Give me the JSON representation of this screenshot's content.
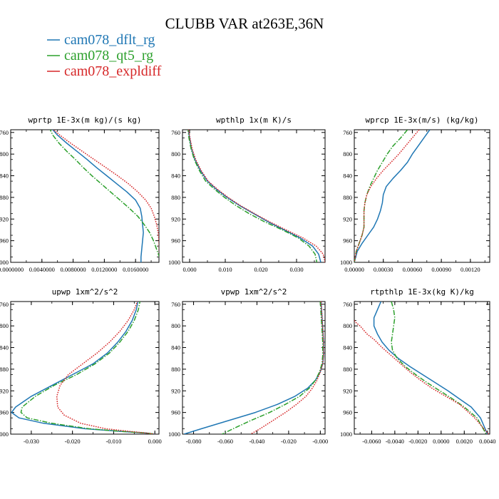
{
  "figure": {
    "title": "CLUBB VAR at263E,36N",
    "legend": [
      {
        "name": "cam078_dflt_rg",
        "color": "#1f77b4",
        "dash": "solid"
      },
      {
        "name": "cam078_qt5_rg",
        "color": "#2ca02c",
        "dash": "dashdot"
      },
      {
        "name": "cam078_expldiff",
        "color": "#d62728",
        "dash": "dotted"
      }
    ]
  },
  "chart_data": [
    {
      "type": "line",
      "title": "wprtp  1E-3x(m kg)/(s kg)",
      "xlim": [
        0.0,
        0.019
      ],
      "ylim": [
        1000,
        755
      ],
      "xticks": [
        0.0,
        0.004,
        0.008,
        0.012,
        0.016
      ],
      "xtick_labels": [
        "0.0000000",
        "0.0040000",
        "0.0080000",
        "0.0120000",
        "0.0160000"
      ],
      "yticks": [
        760,
        800,
        840,
        880,
        920,
        960,
        1000
      ],
      "ytick_labels": [
        "760",
        "800",
        "840",
        "880",
        "920",
        "960",
        "1000"
      ],
      "series": [
        {
          "name": "cam078_dflt_rg",
          "x": [
            0.0051,
            0.006,
            0.0072,
            0.0085,
            0.0098,
            0.011,
            0.0123,
            0.0136,
            0.0149,
            0.016,
            0.0166,
            0.0168,
            0.0169,
            0.017,
            0.0169,
            0.0168,
            0.0167,
            0.0167
          ],
          "y": [
            750,
            765,
            780,
            795,
            810,
            825,
            840,
            855,
            870,
            885,
            900,
            915,
            930,
            945,
            960,
            975,
            990,
            1000
          ]
        },
        {
          "name": "cam078_qt5_rg",
          "x": [
            0.0049,
            0.0054,
            0.0062,
            0.0072,
            0.0083,
            0.0093,
            0.0104,
            0.0116,
            0.0128,
            0.014,
            0.0152,
            0.0163,
            0.0171,
            0.0178,
            0.0183,
            0.0188,
            0.0193
          ],
          "y": [
            750,
            765,
            780,
            795,
            810,
            825,
            840,
            855,
            870,
            885,
            900,
            915,
            930,
            945,
            960,
            980,
            1000
          ]
        },
        {
          "name": "cam078_expldiff",
          "x": [
            0.0051,
            0.0063,
            0.0077,
            0.0092,
            0.0107,
            0.0122,
            0.0137,
            0.0151,
            0.0163,
            0.0173,
            0.018,
            0.0184,
            0.0187,
            0.0189,
            0.019,
            0.0191
          ],
          "y": [
            750,
            765,
            780,
            795,
            810,
            825,
            840,
            855,
            870,
            885,
            900,
            915,
            930,
            945,
            960,
            1000
          ]
        }
      ]
    },
    {
      "type": "line",
      "title": "wpthlp  1x(m K)/s",
      "xlim": [
        -0.002,
        0.038
      ],
      "ylim": [
        1000,
        755
      ],
      "xticks": [
        0.0,
        0.01,
        0.02,
        0.03
      ],
      "xtick_labels": [
        "0.000",
        "0.010",
        "0.020",
        "0.030"
      ],
      "yticks": [
        760,
        800,
        840,
        880,
        920,
        960,
        1000
      ],
      "ytick_labels": [
        "760",
        "800",
        "840",
        "880",
        "920",
        "960",
        "1000"
      ],
      "series": [
        {
          "name": "cam078_dflt_rg",
          "x": [
            -0.0005,
            0.0,
            0.0005,
            0.0015,
            0.003,
            0.005,
            0.0075,
            0.0105,
            0.014,
            0.018,
            0.022,
            0.0265,
            0.031,
            0.0345,
            0.0362,
            0.0368
          ],
          "y": [
            750,
            770,
            790,
            810,
            830,
            850,
            865,
            880,
            895,
            910,
            925,
            940,
            955,
            970,
            985,
            1000
          ]
        },
        {
          "name": "cam078_qt5_rg",
          "x": [
            -0.0005,
            -0.0002,
            0.0004,
            0.0013,
            0.0027,
            0.0045,
            0.007,
            0.0098,
            0.013,
            0.0167,
            0.021,
            0.026,
            0.0305,
            0.0335,
            0.0352,
            0.0357
          ],
          "y": [
            750,
            770,
            790,
            810,
            830,
            850,
            865,
            880,
            895,
            910,
            925,
            940,
            955,
            970,
            985,
            1000
          ]
        },
        {
          "name": "cam078_expldiff",
          "x": [
            -0.0004,
            0.0001,
            0.0007,
            0.0017,
            0.0032,
            0.0052,
            0.0078,
            0.0108,
            0.0142,
            0.0182,
            0.0224,
            0.027,
            0.0318,
            0.0355,
            0.0375,
            0.038
          ],
          "y": [
            750,
            770,
            790,
            810,
            830,
            850,
            865,
            880,
            895,
            910,
            925,
            940,
            955,
            970,
            985,
            1000
          ]
        }
      ]
    },
    {
      "type": "line",
      "title": "wprcp  1E-3x(m/s) (kg/kg)",
      "xlim": [
        0.0,
        0.0014
      ],
      "ylim": [
        1000,
        755
      ],
      "xticks": [
        0.0,
        0.0003,
        0.0006,
        0.0009,
        0.0012
      ],
      "xtick_labels": [
        "0.00000",
        "0.00030",
        "0.00060",
        "0.00090",
        "0.00120"
      ],
      "yticks": [
        760,
        800,
        840,
        880,
        920,
        960,
        1000
      ],
      "ytick_labels": [
        "760",
        "800",
        "840",
        "880",
        "920",
        "960",
        "1000"
      ],
      "series": [
        {
          "name": "cam078_dflt_rg",
          "x": [
            0.00078,
            0.00072,
            0.00066,
            0.0006,
            0.00055,
            0.00048,
            0.0004,
            0.00033,
            0.0003,
            0.00029,
            0.00027,
            0.00024,
            0.0002,
            0.00014,
            8e-05,
            3e-05,
            0.0
          ],
          "y": [
            755,
            770,
            785,
            800,
            815,
            830,
            845,
            860,
            875,
            890,
            905,
            920,
            935,
            950,
            965,
            980,
            1000
          ]
        },
        {
          "name": "cam078_qt5_rg",
          "x": [
            0.00055,
            0.00048,
            0.0004,
            0.00034,
            0.00029,
            0.00024,
            0.0002,
            0.00016,
            0.00013,
            0.00011,
            0.0001,
            0.0001,
            0.0001,
            8e-05,
            5e-05,
            2e-05,
            0.0
          ],
          "y": [
            755,
            770,
            785,
            800,
            815,
            830,
            845,
            860,
            875,
            890,
            905,
            920,
            935,
            950,
            965,
            980,
            1000
          ]
        },
        {
          "name": "cam078_expldiff",
          "x": [
            0.00067,
            0.0006,
            0.00053,
            0.00046,
            0.00038,
            0.0003,
            0.00023,
            0.00017,
            0.00013,
            0.00011,
            0.0001,
            0.0001,
            0.0001,
            8e-05,
            5e-05,
            2e-05,
            0.0
          ],
          "y": [
            755,
            770,
            785,
            800,
            815,
            830,
            845,
            860,
            875,
            890,
            905,
            920,
            935,
            950,
            965,
            980,
            1000
          ]
        }
      ]
    },
    {
      "type": "line",
      "title": "upwp  1xm^2/s^2",
      "xlim": [
        -0.035,
        0.001
      ],
      "ylim": [
        1000,
        755
      ],
      "xticks": [
        -0.03,
        -0.02,
        -0.01,
        0.0
      ],
      "xtick_labels": [
        "-0.030",
        "-0.020",
        "-0.010",
        "0.000"
      ],
      "yticks": [
        760,
        800,
        840,
        880,
        920,
        960,
        1000
      ],
      "ytick_labels": [
        "760",
        "800",
        "840",
        "880",
        "920",
        "960",
        "1000"
      ],
      "series": [
        {
          "name": "cam078_dflt_rg",
          "x": [
            -0.004,
            -0.0045,
            -0.0055,
            -0.007,
            -0.009,
            -0.0115,
            -0.015,
            -0.02,
            -0.025,
            -0.03,
            -0.0338,
            -0.0348,
            -0.033,
            -0.027,
            -0.017,
            -0.008,
            -0.002,
            0.0
          ],
          "y": [
            750,
            770,
            790,
            810,
            830,
            850,
            870,
            890,
            910,
            930,
            950,
            960,
            970,
            980,
            990,
            995,
            998,
            1000
          ]
        },
        {
          "name": "cam078_qt5_rg",
          "x": [
            -0.0035,
            -0.004,
            -0.005,
            -0.0065,
            -0.0085,
            -0.011,
            -0.0145,
            -0.019,
            -0.0245,
            -0.029,
            -0.0322,
            -0.0325,
            -0.031,
            -0.025,
            -0.016,
            -0.008,
            -0.002,
            0.0
          ],
          "y": [
            750,
            770,
            790,
            810,
            830,
            850,
            870,
            890,
            910,
            930,
            950,
            960,
            970,
            980,
            990,
            995,
            998,
            1000
          ]
        },
        {
          "name": "cam078_expldiff",
          "x": [
            -0.004,
            -0.005,
            -0.0065,
            -0.0085,
            -0.011,
            -0.014,
            -0.0175,
            -0.021,
            -0.023,
            -0.0238,
            -0.0236,
            -0.022,
            -0.018,
            -0.012,
            -0.006,
            -0.002,
            0.0
          ],
          "y": [
            750,
            770,
            790,
            810,
            830,
            850,
            870,
            890,
            910,
            930,
            950,
            965,
            980,
            990,
            995,
            998,
            1000
          ]
        }
      ]
    },
    {
      "type": "line",
      "title": "vpwp  1xm^2/s^2",
      "xlim": [
        -0.087,
        0.003
      ],
      "ylim": [
        1000,
        755
      ],
      "xticks": [
        -0.08,
        -0.06,
        -0.04,
        -0.02,
        0.0
      ],
      "xtick_labels": [
        "-0.080",
        "-0.060",
        "-0.040",
        "-0.020",
        "-0.000"
      ],
      "yticks": [
        760,
        800,
        840,
        880,
        920,
        960,
        1000
      ],
      "ytick_labels": [
        "760",
        "800",
        "840",
        "880",
        "920",
        "960",
        "1000"
      ],
      "series": [
        {
          "name": "cam078_dflt_rg",
          "x": [
            0.0005,
            0.001,
            0.0015,
            0.002,
            0.002,
            0.0015,
            0.0,
            -0.003,
            -0.008,
            -0.016,
            -0.027,
            -0.041,
            -0.058,
            -0.075,
            -0.086
          ],
          "y": [
            755,
            780,
            805,
            830,
            855,
            870,
            885,
            900,
            915,
            930,
            945,
            960,
            975,
            990,
            1000
          ]
        },
        {
          "name": "cam078_qt5_rg",
          "x": [
            0.0,
            0.0005,
            0.001,
            0.0015,
            0.0015,
            0.001,
            -0.0005,
            -0.003,
            -0.007,
            -0.013,
            -0.022,
            -0.032,
            -0.044,
            -0.055,
            -0.062
          ],
          "y": [
            755,
            780,
            805,
            830,
            855,
            870,
            885,
            900,
            915,
            930,
            945,
            960,
            975,
            990,
            1000
          ]
        },
        {
          "name": "cam078_expldiff",
          "x": [
            0.0005,
            0.001,
            0.0015,
            0.002,
            0.002,
            0.0015,
            0.0,
            -0.002,
            -0.005,
            -0.009,
            -0.015,
            -0.022,
            -0.03,
            -0.038,
            -0.044
          ],
          "y": [
            755,
            780,
            805,
            830,
            855,
            870,
            885,
            900,
            915,
            930,
            945,
            960,
            975,
            990,
            1000
          ]
        }
      ]
    },
    {
      "type": "line",
      "title": "rtpthlp  1E-3x(kg K)/kg",
      "xlim": [
        -0.0075,
        0.0042
      ],
      "ylim": [
        1000,
        755
      ],
      "xticks": [
        -0.006,
        -0.004,
        -0.002,
        0.0,
        0.002,
        0.004
      ],
      "xtick_labels": [
        "-0.0060",
        "-0.0040",
        "-0.0020",
        "0.0000",
        "0.0020",
        "0.0040"
      ],
      "yticks": [
        760,
        800,
        840,
        880,
        920,
        960,
        1000
      ],
      "ytick_labels": [
        "760",
        "800",
        "840",
        "880",
        "920",
        "960",
        "1000"
      ],
      "series": [
        {
          "name": "cam078_dflt_rg",
          "x": [
            -0.0052,
            -0.0055,
            -0.0058,
            -0.0058,
            -0.0055,
            -0.0051,
            -0.0045,
            -0.0037,
            -0.0027,
            -0.0016,
            -0.0005,
            0.0006,
            0.0016,
            0.0026,
            0.0034,
            0.004
          ],
          "y": [
            755,
            770,
            785,
            800,
            815,
            830,
            845,
            860,
            875,
            890,
            905,
            920,
            935,
            950,
            970,
            1000
          ]
        },
        {
          "name": "cam078_qt5_rg",
          "x": [
            -0.0043,
            -0.0041,
            -0.004,
            -0.0041,
            -0.0042,
            -0.0043,
            -0.0042,
            -0.0038,
            -0.0031,
            -0.0022,
            -0.0012,
            -0.0001,
            0.001,
            0.002,
            0.0031,
            0.0039
          ],
          "y": [
            755,
            770,
            785,
            800,
            815,
            830,
            845,
            860,
            875,
            890,
            905,
            920,
            935,
            950,
            970,
            1000
          ]
        },
        {
          "name": "cam078_expldiff",
          "x": [
            -0.0075,
            -0.0073,
            -0.007,
            -0.0068,
            -0.0064,
            -0.0058,
            -0.0051,
            -0.0043,
            -0.0035,
            -0.0027,
            -0.0018,
            -0.0008,
            0.0004,
            0.0016,
            0.0029,
            0.0041
          ],
          "y": [
            790,
            795,
            800,
            805,
            815,
            825,
            840,
            855,
            870,
            885,
            900,
            915,
            930,
            945,
            970,
            1000
          ]
        }
      ]
    }
  ]
}
